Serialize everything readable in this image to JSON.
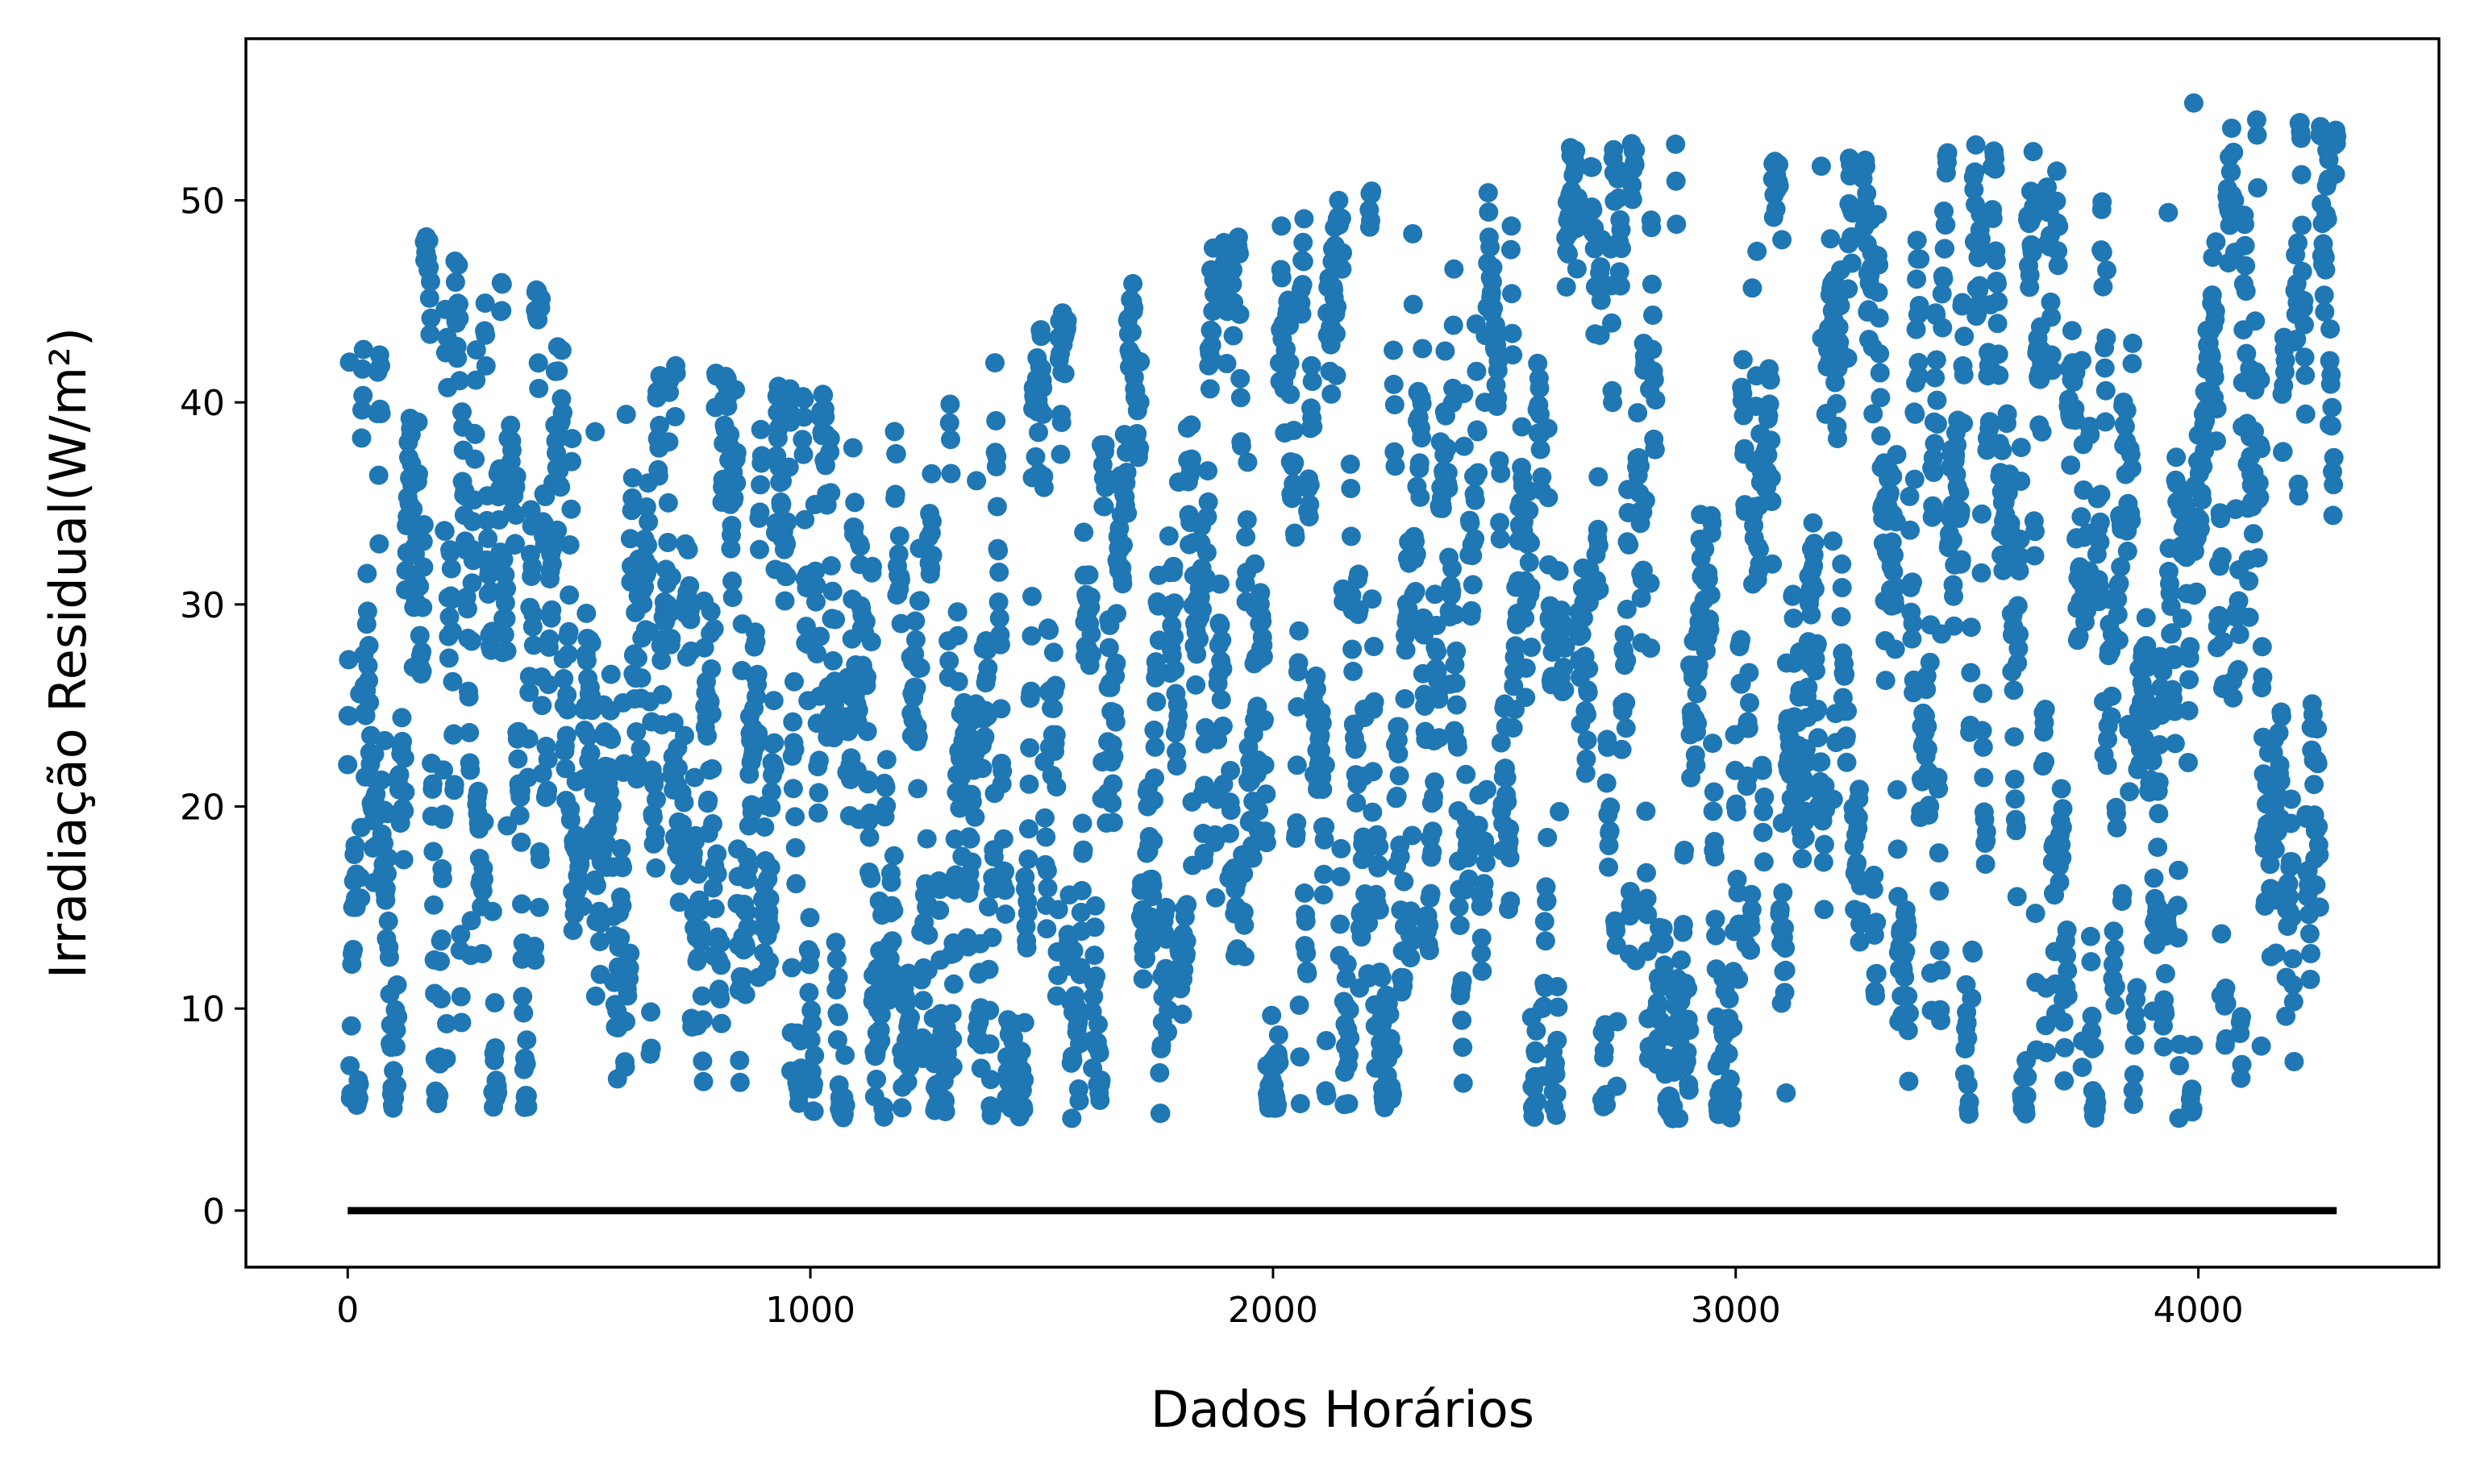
{
  "chart_data": {
    "type": "scatter",
    "title": "",
    "xlabel": "Dados Horários",
    "ylabel": "Irradiação Residual(W/m²)",
    "xlim": [
      -220,
      4520
    ],
    "ylim": [
      -2.8,
      58
    ],
    "xticks": [
      0,
      1000,
      2000,
      3000,
      4000
    ],
    "yticks": [
      0,
      10,
      20,
      30,
      40,
      50
    ],
    "xtick_labels": [
      "0",
      "1000",
      "2000",
      "3000",
      "4000"
    ],
    "ytick_labels": [
      "0",
      "10",
      "20",
      "30",
      "40",
      "50"
    ],
    "grid": false,
    "legend": false,
    "point_color": "#1f77b4",
    "line_color": "#000000",
    "series": [
      {
        "kind": "scatter",
        "n_points": 4300,
        "x_range": [
          0,
          4299
        ],
        "y_range": [
          4.1,
          55.0
        ],
        "envelope": [
          {
            "x": 0,
            "ymin": 5,
            "ymax": 50
          },
          {
            "x": 300,
            "ymin": 5,
            "ymax": 47
          },
          {
            "x": 700,
            "ymin": 4.5,
            "ymax": 42
          },
          {
            "x": 1000,
            "ymin": 4.5,
            "ymax": 40.5
          },
          {
            "x": 1300,
            "ymin": 4.5,
            "ymax": 42
          },
          {
            "x": 1600,
            "ymin": 4.5,
            "ymax": 45
          },
          {
            "x": 2000,
            "ymin": 5,
            "ymax": 49
          },
          {
            "x": 2400,
            "ymin": 4.5,
            "ymax": 52
          },
          {
            "x": 2800,
            "ymin": 4.5,
            "ymax": 53
          },
          {
            "x": 3200,
            "ymin": 4.5,
            "ymax": 52
          },
          {
            "x": 3600,
            "ymin": 4.5,
            "ymax": 53
          },
          {
            "x": 4000,
            "ymin": 4.5,
            "ymax": 55
          },
          {
            "x": 4299,
            "ymin": 4.5,
            "ymax": 54
          }
        ]
      },
      {
        "kind": "line",
        "x": [
          0,
          4299
        ],
        "y": [
          0,
          0
        ]
      }
    ]
  }
}
